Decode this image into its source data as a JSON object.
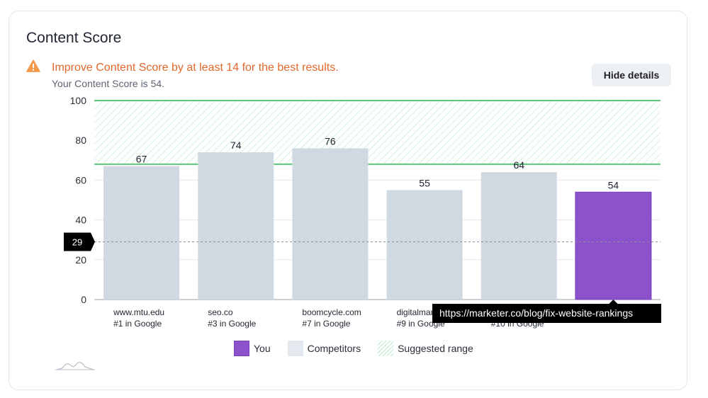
{
  "card": {
    "title": "Content Score",
    "warning_message": "Improve Content Score by at least 14 for the best results.",
    "score_message": "Your Content Score is 54.",
    "hide_details_label": "Hide details",
    "warning_icon": "warning-triangle-icon",
    "sparkline_icon": "sparkline-icon"
  },
  "colors": {
    "you": "#8b52cc",
    "competitors": "#d0d8e1",
    "suggested_range": "#5cc97a",
    "warning": "#e0692c"
  },
  "tooltip": "https://marketer.co/blog/fix-website-rankings",
  "chart_data": {
    "type": "bar",
    "title": "",
    "xlabel": "",
    "ylabel": "",
    "ylim": [
      0,
      100
    ],
    "yticks": [
      0,
      20,
      40,
      60,
      80,
      100
    ],
    "categories": [
      {
        "site": "www.mtu.edu",
        "rank": "#1 in Google"
      },
      {
        "site": "seo.co",
        "rank": "#3 in Google"
      },
      {
        "site": "boomcycle.com",
        "rank": "#7 in Google"
      },
      {
        "site": "digitalmarketingi",
        "rank": "#9 in Google"
      },
      {
        "site": "",
        "rank": "#10 in Google"
      },
      {
        "site": "",
        "rank": ""
      }
    ],
    "values": [
      67,
      74,
      76,
      55,
      64,
      54
    ],
    "is_you": [
      false,
      false,
      false,
      false,
      false,
      true
    ],
    "suggested_range": [
      68,
      100
    ],
    "reference_line": 29,
    "legend": [
      "You",
      "Competitors",
      "Suggested range"
    ],
    "legend_position": "bottom"
  }
}
